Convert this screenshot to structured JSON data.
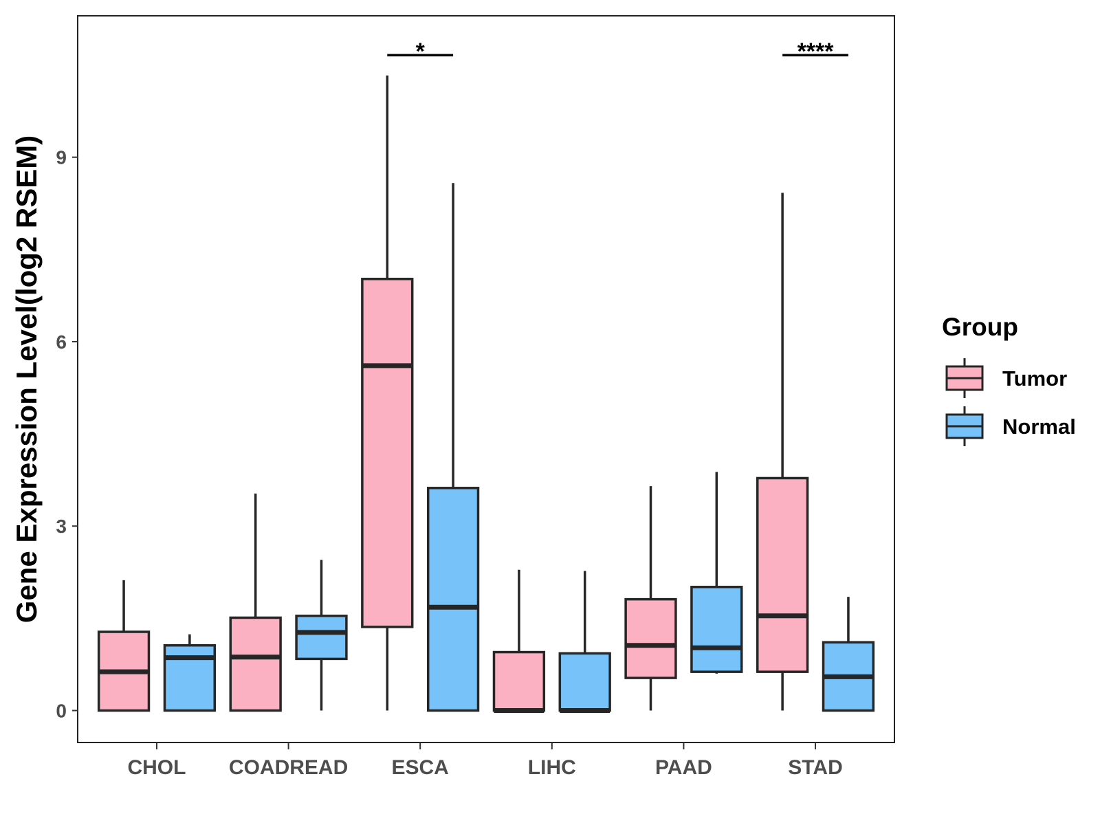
{
  "chart_data": {
    "type": "boxplot",
    "ylabel": "Gene Expression Level(log2 RSEM)",
    "xlabel": "",
    "ylim": [
      -0.52,
      11.3
    ],
    "yticks": [
      0,
      3,
      6,
      9
    ],
    "categories": [
      "CHOL",
      "COADREAD",
      "ESCA",
      "LIHC",
      "PAAD",
      "STAD"
    ],
    "legend": {
      "title": "Group",
      "position": "right",
      "entries": [
        {
          "name": "Tumor",
          "color": "#FBB1C2"
        },
        {
          "name": "Normal",
          "color": "#77C2F8"
        }
      ]
    },
    "series": [
      {
        "name": "Tumor",
        "color": "#FBB1C2",
        "boxes": [
          {
            "category": "CHOL",
            "min": 0.0,
            "q1": 0.0,
            "median": 0.63,
            "q3": 1.28,
            "max": 2.12
          },
          {
            "category": "COADREAD",
            "min": 0.0,
            "q1": 0.0,
            "median": 0.87,
            "q3": 1.51,
            "max": 3.53
          },
          {
            "category": "ESCA",
            "min": 0.0,
            "q1": 1.36,
            "median": 5.61,
            "q3": 7.02,
            "max": 10.33
          },
          {
            "category": "LIHC",
            "min": 0.0,
            "q1": 0.0,
            "median": 0.0,
            "q3": 0.95,
            "max": 2.29
          },
          {
            "category": "PAAD",
            "min": 0.0,
            "q1": 0.53,
            "median": 1.06,
            "q3": 1.81,
            "max": 3.65
          },
          {
            "category": "STAD",
            "min": 0.0,
            "q1": 0.63,
            "median": 1.54,
            "q3": 3.78,
            "max": 8.42
          }
        ]
      },
      {
        "name": "Normal",
        "color": "#77C2F8",
        "boxes": [
          {
            "category": "CHOL",
            "min": 0.0,
            "q1": 0.0,
            "median": 0.86,
            "q3": 1.06,
            "max": 1.24
          },
          {
            "category": "COADREAD",
            "min": 0.0,
            "q1": 0.84,
            "median": 1.27,
            "q3": 1.54,
            "max": 2.45
          },
          {
            "category": "ESCA",
            "min": 0.0,
            "q1": 0.0,
            "median": 1.68,
            "q3": 3.62,
            "max": 8.58
          },
          {
            "category": "LIHC",
            "min": 0.0,
            "q1": 0.0,
            "median": 0.0,
            "q3": 0.93,
            "max": 2.27
          },
          {
            "category": "PAAD",
            "min": 0.6,
            "q1": 0.63,
            "median": 1.02,
            "q3": 2.01,
            "max": 3.88
          },
          {
            "category": "STAD",
            "min": 0.0,
            "q1": 0.0,
            "median": 0.55,
            "q3": 1.11,
            "max": 1.85
          }
        ]
      }
    ],
    "significance": [
      {
        "category": "ESCA",
        "label": "*",
        "y": 10.66
      },
      {
        "category": "STAD",
        "label": "****",
        "y": 10.66
      }
    ]
  }
}
